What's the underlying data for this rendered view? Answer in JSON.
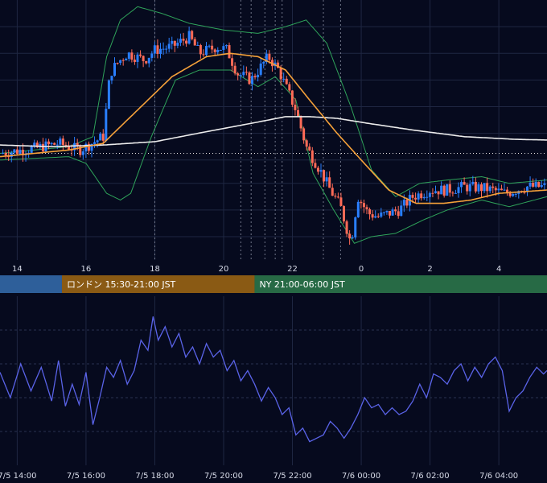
{
  "chart_data": [
    {
      "type": "candlestick",
      "title": "",
      "timeframe": "5m",
      "x_axis_ticks": [
        "14",
        "16",
        "18",
        "20",
        "22",
        "0",
        "2",
        "4"
      ],
      "x_tick_hours": [
        14,
        16,
        18,
        20,
        22,
        24,
        26,
        28
      ],
      "x_range_hours": [
        13.5,
        29.4
      ],
      "y_range": [
        -3.2,
        4.6
      ],
      "y_gridlines": [
        3.8,
        3.0,
        2.2,
        1.4,
        0.6,
        -0.2,
        -0.9,
        -1.7,
        -2.5
      ],
      "dotted_reference_level": 0.0,
      "vertical_dashed_lines_hours": [
        18.0,
        20.5,
        20.8,
        21.2,
        21.5,
        21.7,
        22.9,
        23.4
      ],
      "candle_interval_hours": 0.0833,
      "candle_keypoints": [
        [
          13.5,
          0.0
        ],
        [
          14.5,
          0.15
        ],
        [
          15.2,
          0.3
        ],
        [
          15.8,
          0.1
        ],
        [
          16.0,
          0.2
        ],
        [
          16.5,
          0.5
        ],
        [
          16.7,
          2.4
        ],
        [
          16.9,
          2.7
        ],
        [
          17.2,
          3.0
        ],
        [
          17.7,
          2.8
        ],
        [
          18.0,
          3.1
        ],
        [
          18.5,
          3.2
        ],
        [
          19.0,
          3.5
        ],
        [
          19.3,
          3.0
        ],
        [
          19.8,
          3.2
        ],
        [
          20.1,
          3.1
        ],
        [
          20.4,
          2.4
        ],
        [
          20.8,
          2.2
        ],
        [
          21.3,
          2.9
        ],
        [
          21.6,
          2.5
        ],
        [
          22.1,
          1.3
        ],
        [
          22.4,
          0.2
        ],
        [
          22.8,
          -0.5
        ],
        [
          23.1,
          -1.1
        ],
        [
          23.4,
          -1.6
        ],
        [
          23.7,
          -2.7
        ],
        [
          23.9,
          -1.3
        ],
        [
          24.2,
          -1.8
        ],
        [
          24.5,
          -1.9
        ],
        [
          25.1,
          -1.7
        ],
        [
          25.5,
          -1.3
        ],
        [
          26.0,
          -1.1
        ],
        [
          26.5,
          -1.1
        ],
        [
          27.0,
          -1.0
        ],
        [
          27.6,
          -1.05
        ],
        [
          28.2,
          -1.2
        ],
        [
          28.8,
          -1.0
        ],
        [
          29.4,
          -1.0
        ]
      ],
      "ma_short_keypoints": [
        [
          13.5,
          -0.1
        ],
        [
          15.5,
          0.1
        ],
        [
          16.5,
          0.3
        ],
        [
          17.5,
          1.3
        ],
        [
          18.5,
          2.3
        ],
        [
          19.5,
          2.9
        ],
        [
          20.2,
          3.0
        ],
        [
          21.0,
          2.9
        ],
        [
          21.8,
          2.5
        ],
        [
          22.5,
          1.6
        ],
        [
          23.3,
          0.6
        ],
        [
          24.0,
          -0.2
        ],
        [
          24.8,
          -1.1
        ],
        [
          25.6,
          -1.5
        ],
        [
          26.4,
          -1.5
        ],
        [
          27.2,
          -1.4
        ],
        [
          28.0,
          -1.2
        ],
        [
          29.4,
          -1.1
        ]
      ],
      "ma_long_keypoints": [
        [
          13.5,
          0.25
        ],
        [
          15.0,
          0.2
        ],
        [
          16.5,
          0.25
        ],
        [
          18.0,
          0.35
        ],
        [
          19.5,
          0.65
        ],
        [
          20.8,
          0.9
        ],
        [
          21.8,
          1.1
        ],
        [
          22.5,
          1.1
        ],
        [
          23.3,
          1.05
        ],
        [
          24.2,
          0.9
        ],
        [
          25.5,
          0.7
        ],
        [
          27.0,
          0.5
        ],
        [
          28.5,
          0.42
        ],
        [
          29.4,
          0.4
        ]
      ],
      "bollinger_upper_keypoints": [
        [
          13.5,
          0.0
        ],
        [
          15.5,
          0.2
        ],
        [
          16.2,
          0.5
        ],
        [
          16.6,
          2.9
        ],
        [
          17.0,
          4.0
        ],
        [
          17.5,
          4.4
        ],
        [
          18.2,
          4.2
        ],
        [
          19.0,
          3.9
        ],
        [
          20.0,
          3.7
        ],
        [
          21.0,
          3.6
        ],
        [
          21.8,
          3.8
        ],
        [
          22.4,
          4.0
        ],
        [
          23.0,
          3.3
        ],
        [
          23.7,
          1.4
        ],
        [
          24.3,
          -0.5
        ],
        [
          25.0,
          -1.3
        ],
        [
          25.7,
          -0.9
        ],
        [
          26.5,
          -0.8
        ],
        [
          27.5,
          -0.7
        ],
        [
          28.3,
          -0.9
        ],
        [
          29.4,
          -0.8
        ]
      ],
      "bollinger_lower_keypoints": [
        [
          13.5,
          -0.2
        ],
        [
          15.5,
          -0.1
        ],
        [
          16.0,
          -0.3
        ],
        [
          16.6,
          -1.2
        ],
        [
          17.0,
          -1.4
        ],
        [
          17.3,
          -1.2
        ],
        [
          17.9,
          0.5
        ],
        [
          18.6,
          2.2
        ],
        [
          19.3,
          2.5
        ],
        [
          20.2,
          2.5
        ],
        [
          21.0,
          2.0
        ],
        [
          21.5,
          2.3
        ],
        [
          22.1,
          1.6
        ],
        [
          22.6,
          -0.6
        ],
        [
          23.2,
          -1.7
        ],
        [
          23.8,
          -2.7
        ],
        [
          24.3,
          -2.5
        ],
        [
          25.0,
          -2.4
        ],
        [
          25.8,
          -2.0
        ],
        [
          26.5,
          -1.7
        ],
        [
          27.5,
          -1.4
        ],
        [
          28.3,
          -1.6
        ],
        [
          29.4,
          -1.3
        ]
      ],
      "colors": {
        "up_candle": "#2a7fff",
        "down_candle": "#ff6b57",
        "ma_short": "#f5a13a",
        "ma_long": "#ececec",
        "bollinger": "#2fa35a",
        "grid": "#1f2742",
        "dashed_lines": "#8a90a3",
        "background": "#060a1e"
      }
    },
    {
      "type": "line",
      "title": "",
      "x_axis_ticks": [
        "7/5 14:00",
        "7/5 16:00",
        "7/5 18:00",
        "7/5 20:00",
        "7/5 22:00",
        "7/6 00:00",
        "7/6 02:00",
        "7/6 04:00"
      ],
      "x_tick_hours": [
        14,
        16,
        18,
        20,
        22,
        24,
        26,
        28
      ],
      "x_range_hours": [
        13.5,
        29.4
      ],
      "y_range": [
        0,
        100
      ],
      "y_gridlines": [
        80,
        60,
        40,
        20
      ],
      "series": [
        {
          "color": "#5a63e8",
          "points": [
            [
              13.5,
              55
            ],
            [
              13.8,
              40
            ],
            [
              14.1,
              60
            ],
            [
              14.4,
              44
            ],
            [
              14.7,
              58
            ],
            [
              15.0,
              38
            ],
            [
              15.2,
              62
            ],
            [
              15.4,
              35
            ],
            [
              15.6,
              48
            ],
            [
              15.8,
              36
            ],
            [
              16.0,
              55
            ],
            [
              16.2,
              24
            ],
            [
              16.4,
              40
            ],
            [
              16.6,
              58
            ],
            [
              16.8,
              52
            ],
            [
              17.0,
              62
            ],
            [
              17.2,
              48
            ],
            [
              17.4,
              56
            ],
            [
              17.6,
              74
            ],
            [
              17.8,
              68
            ],
            [
              17.95,
              88
            ],
            [
              18.1,
              74
            ],
            [
              18.3,
              82
            ],
            [
              18.5,
              70
            ],
            [
              18.7,
              78
            ],
            [
              18.9,
              64
            ],
            [
              19.1,
              70
            ],
            [
              19.3,
              60
            ],
            [
              19.5,
              72
            ],
            [
              19.7,
              64
            ],
            [
              19.9,
              68
            ],
            [
              20.1,
              56
            ],
            [
              20.3,
              62
            ],
            [
              20.5,
              50
            ],
            [
              20.7,
              56
            ],
            [
              20.9,
              48
            ],
            [
              21.1,
              38
            ],
            [
              21.3,
              46
            ],
            [
              21.5,
              40
            ],
            [
              21.7,
              30
            ],
            [
              21.9,
              34
            ],
            [
              22.1,
              18
            ],
            [
              22.3,
              22
            ],
            [
              22.5,
              14
            ],
            [
              22.7,
              16
            ],
            [
              22.9,
              18
            ],
            [
              23.1,
              26
            ],
            [
              23.3,
              22
            ],
            [
              23.5,
              16
            ],
            [
              23.7,
              22
            ],
            [
              23.9,
              30
            ],
            [
              24.1,
              40
            ],
            [
              24.3,
              34
            ],
            [
              24.5,
              36
            ],
            [
              24.7,
              30
            ],
            [
              24.9,
              34
            ],
            [
              25.1,
              30
            ],
            [
              25.3,
              32
            ],
            [
              25.5,
              38
            ],
            [
              25.7,
              48
            ],
            [
              25.9,
              40
            ],
            [
              26.1,
              54
            ],
            [
              26.3,
              52
            ],
            [
              26.5,
              48
            ],
            [
              26.7,
              56
            ],
            [
              26.9,
              60
            ],
            [
              27.1,
              50
            ],
            [
              27.3,
              58
            ],
            [
              27.5,
              52
            ],
            [
              27.7,
              60
            ],
            [
              27.9,
              64
            ],
            [
              28.1,
              56
            ],
            [
              28.3,
              32
            ],
            [
              28.5,
              40
            ],
            [
              28.7,
              44
            ],
            [
              28.9,
              52
            ],
            [
              29.1,
              58
            ],
            [
              29.3,
              54
            ],
            [
              29.4,
              56
            ]
          ]
        }
      ],
      "colors": {
        "grid": "#1f2742",
        "grid_dashed": "#2a3350"
      }
    }
  ],
  "session_bar": [
    {
      "label": "",
      "start_hour": 13.5,
      "end_hour": 15.3,
      "color": "#2e5f9a"
    },
    {
      "label": "ロンドン 15:30-21:00 JST",
      "start_hour": 15.3,
      "end_hour": 20.9,
      "color": "#8a5a14"
    },
    {
      "label": "NY 21:00-06:00 JST",
      "start_hour": 20.9,
      "end_hour": 29.4,
      "color": "#276a45"
    }
  ]
}
